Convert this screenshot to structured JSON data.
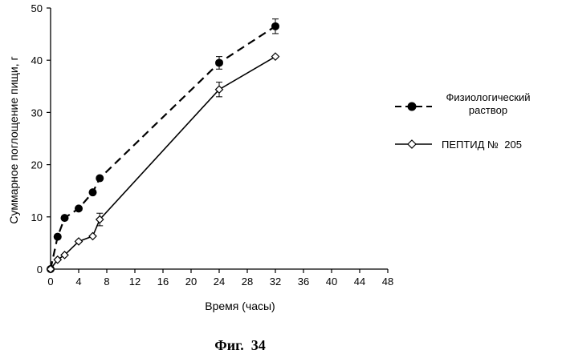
{
  "chart_data": {
    "type": "line",
    "title": "",
    "xlabel": "Время (часы)",
    "ylabel": "Суммарное поглощение пищи, г",
    "xlim": [
      0,
      48
    ],
    "ylim": [
      0,
      50
    ],
    "x_ticks": [
      "0",
      "4",
      "8",
      "12",
      "16",
      "20",
      "24",
      "28",
      "32",
      "36",
      "40",
      "44",
      "48"
    ],
    "y_ticks": [
      "0",
      "10",
      "20",
      "30",
      "40",
      "50"
    ],
    "grid": false,
    "legend_position": "right",
    "series": [
      {
        "name_line1": "Физиологический",
        "name_line2": "раствор",
        "marker": "filled-circle",
        "line_style": "dashed",
        "x": [
          0,
          1,
          2,
          4,
          6,
          7,
          24,
          32
        ],
        "y": [
          0,
          6.2,
          9.8,
          11.6,
          14.7,
          17.4,
          39.5,
          46.5
        ],
        "error": [
          0,
          0,
          0,
          0,
          0,
          0,
          1.2,
          1.4
        ]
      },
      {
        "name": "ПЕПТИД №  205",
        "marker": "open-diamond",
        "line_style": "solid",
        "x": [
          0,
          1,
          2,
          4,
          6,
          7,
          24,
          32
        ],
        "y": [
          0,
          1.8,
          2.7,
          5.3,
          6.3,
          9.5,
          34.4,
          40.7
        ],
        "error": [
          0,
          0,
          0,
          0,
          0,
          1.2,
          1.4,
          0
        ]
      }
    ]
  },
  "caption": "Фиг.  34"
}
